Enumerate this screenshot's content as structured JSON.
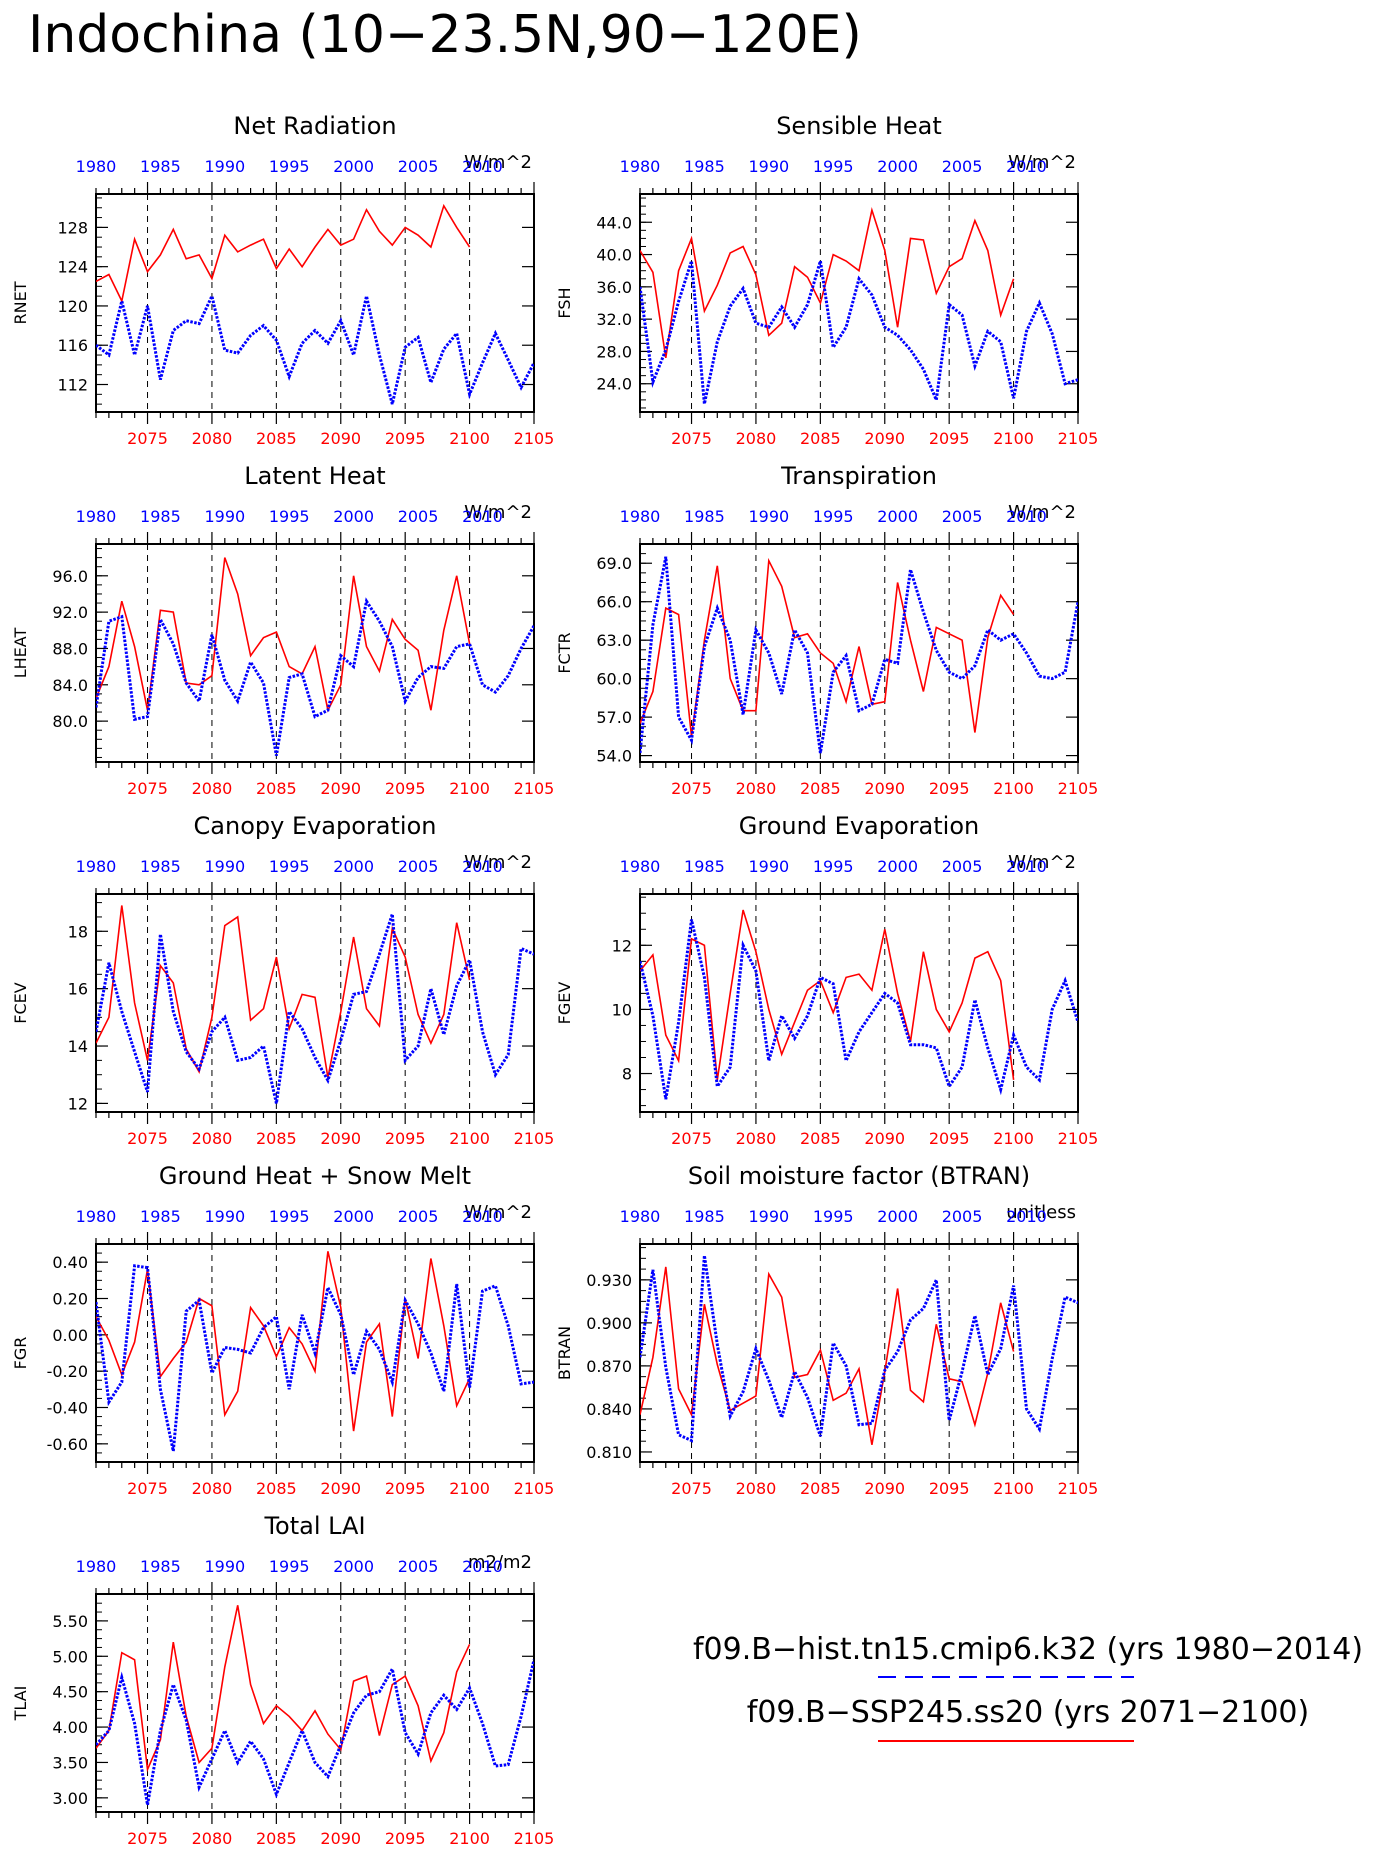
{
  "page_title": "Indochina (10−23.5N,90−120E)",
  "colors": {
    "hist": "#0000ff",
    "future": "#ff0000",
    "axis": "#000000"
  },
  "hist_years": [
    "1980",
    "1985",
    "1990",
    "1995",
    "2000",
    "2005",
    "2010"
  ],
  "future_years": [
    "2075",
    "2080",
    "2085",
    "2090",
    "2095",
    "2100",
    "2105"
  ],
  "legend": {
    "hist_label": "f09.B−hist.tn15.cmip6.k32 (yrs 1980−2014)",
    "future_label": "f09.B−SSP245.ss20 (yrs 2071−2100)"
  },
  "chart_data": [
    {
      "id": "rnet",
      "type": "line",
      "title": "Net Radiation",
      "ylabel": "RNET",
      "units": "W/m^2",
      "yticks": [
        "112",
        "116",
        "120",
        "124",
        "128"
      ],
      "ylim": [
        109.2,
        131.4
      ],
      "xlim": [
        2071,
        2105
      ],
      "series": [
        {
          "values": [
            116,
            115,
            120.5,
            115,
            120,
            112.5,
            117.5,
            118.5,
            118.2,
            121,
            115.5,
            115.2,
            117,
            118,
            116.5,
            112.8,
            116.2,
            117.5,
            116.2,
            118.5,
            115,
            121,
            115,
            110,
            115.8,
            116.8,
            112.2,
            115.6,
            117.2,
            111,
            114.2,
            117.2,
            114.5,
            111.7,
            114.2
          ]
        },
        {
          "values": [
            122.5,
            123.2,
            120.5,
            126.8,
            123.5,
            125.2,
            127.8,
            124.8,
            125.2,
            122.8,
            127.2,
            125.5,
            126.2,
            126.8,
            123.8,
            125.8,
            124,
            126,
            127.8,
            126.2,
            126.8,
            129.8,
            127.6,
            126.2,
            128,
            127.2,
            126,
            130.2,
            128,
            126
          ]
        }
      ]
    },
    {
      "id": "fsh",
      "type": "line",
      "title": "Sensible Heat",
      "ylabel": "FSH",
      "units": "W/m^2",
      "yticks": [
        "24.0",
        "28.0",
        "32.0",
        "36.0",
        "40.0",
        "44.0"
      ],
      "ylim": [
        20.5,
        47.5
      ],
      "xlim": [
        2071,
        2105
      ],
      "series": [
        {
          "values": [
            36,
            24.2,
            28.2,
            34.2,
            39.2,
            21.5,
            29.2,
            33.6,
            35.8,
            31.5,
            31,
            33.5,
            31,
            33.8,
            39.2,
            28.5,
            31,
            37,
            35,
            31,
            30,
            28.2,
            25.8,
            22,
            33.8,
            32.5,
            26.2,
            30.5,
            29.2,
            22.2,
            30.5,
            34,
            30.2,
            24,
            24.5
          ]
        },
        {
          "values": [
            40.5,
            37.8,
            27.2,
            38,
            42,
            33,
            36.2,
            40.2,
            41,
            37.5,
            30,
            31.5,
            38.5,
            37.2,
            34,
            40,
            39.2,
            38,
            45.5,
            40.5,
            31,
            42,
            41.8,
            35.2,
            38.5,
            39.5,
            44.2,
            40.5,
            32.5,
            37
          ]
        }
      ]
    },
    {
      "id": "lheat",
      "type": "line",
      "title": "Latent Heat",
      "ylabel": "LHEAT",
      "units": "W/m^2",
      "yticks": [
        "80.0",
        "84.0",
        "88.0",
        "92.0",
        "96.0"
      ],
      "ylim": [
        75.5,
        99.5
      ],
      "xlim": [
        2071,
        2105
      ],
      "series": [
        {
          "values": [
            81.5,
            91,
            91.5,
            80.2,
            80.5,
            91.2,
            88.5,
            84.2,
            82.2,
            89.5,
            84.5,
            82.2,
            86.5,
            84.2,
            76.2,
            84.8,
            85.2,
            80.5,
            81.2,
            87.2,
            86,
            93.2,
            91,
            88.2,
            82.2,
            84.8,
            86,
            85.8,
            88.2,
            88.5,
            84,
            83.2,
            85,
            88,
            90.5
          ]
        },
        {
          "values": [
            82.5,
            86,
            93.2,
            88.2,
            81.2,
            92.2,
            92,
            84.2,
            84,
            85,
            98,
            94,
            87.2,
            89.2,
            89.8,
            86,
            85.2,
            88.2,
            81.2,
            84,
            96,
            88.2,
            85.5,
            91.2,
            89,
            87.8,
            81.2,
            90,
            96,
            88.5
          ]
        }
      ]
    },
    {
      "id": "fctr",
      "type": "line",
      "title": "Transpiration",
      "ylabel": "FCTR",
      "units": "W/m^2",
      "yticks": [
        "54.0",
        "57.0",
        "60.0",
        "63.0",
        "66.0",
        "69.0"
      ],
      "ylim": [
        53.5,
        70.5
      ],
      "xlim": [
        2071,
        2105
      ],
      "series": [
        {
          "values": [
            54.2,
            64.2,
            69.5,
            57,
            55.2,
            62.5,
            65.5,
            63,
            57.2,
            63.8,
            62,
            58.8,
            63.8,
            62,
            54.2,
            60.5,
            61.8,
            57.5,
            58,
            61.5,
            61.2,
            68.5,
            65.2,
            62.2,
            60.5,
            60,
            61,
            63.8,
            63,
            63.5,
            62,
            60.2,
            60,
            60.5,
            66
          ]
        },
        {
          "values": [
            56.5,
            59,
            65.5,
            65,
            55.5,
            63,
            68.8,
            60,
            57.5,
            57.5,
            69.2,
            67.2,
            63.2,
            63.5,
            62,
            61.2,
            58.2,
            62.5,
            58,
            58.2,
            67.5,
            63,
            59,
            64,
            63.5,
            63,
            55.8,
            63.2,
            66.5,
            65
          ]
        }
      ]
    },
    {
      "id": "fcev",
      "type": "line",
      "title": "Canopy Evaporation",
      "ylabel": "FCEV",
      "units": "W/m^2",
      "yticks": [
        "12",
        "14",
        "16",
        "18"
      ],
      "ylim": [
        11.7,
        19.3
      ],
      "xlim": [
        2071,
        2105
      ],
      "series": [
        {
          "values": [
            14.5,
            16.9,
            15.2,
            13.8,
            12.4,
            17.9,
            15.2,
            13.8,
            13.2,
            14.5,
            15,
            13.5,
            13.6,
            14,
            12,
            15.2,
            14.6,
            13.6,
            12.8,
            14.2,
            15.8,
            15.9,
            17.2,
            18.6,
            13.5,
            14,
            16,
            14.4,
            16.1,
            17,
            14.5,
            13,
            13.7,
            17.4,
            17.2
          ]
        },
        {
          "values": [
            14.1,
            15,
            18.9,
            15.5,
            13.5,
            16.8,
            16.2,
            13.9,
            13.1,
            15,
            18.2,
            18.5,
            14.9,
            15.3,
            17.1,
            14.6,
            15.8,
            15.7,
            12.9,
            15.2,
            17.8,
            15.3,
            14.7,
            18.1,
            17.1,
            15.1,
            14.1,
            15.1,
            18.3,
            16.3
          ]
        }
      ]
    },
    {
      "id": "fgev",
      "type": "line",
      "title": "Ground Evaporation",
      "ylabel": "FGEV",
      "units": "W/m^2",
      "yticks": [
        "8",
        "10",
        "12"
      ],
      "ylim": [
        6.8,
        13.6
      ],
      "xlim": [
        2071,
        2105
      ],
      "series": [
        {
          "values": [
            11.5,
            9.8,
            7.2,
            9.6,
            12.8,
            11,
            7.6,
            8.2,
            12,
            11.2,
            8.4,
            9.8,
            9.1,
            9.8,
            11,
            10.8,
            8.4,
            9.3,
            9.9,
            10.5,
            10.2,
            8.9,
            8.9,
            8.8,
            7.6,
            8.2,
            10.3,
            8.8,
            7.5,
            9.2,
            8.2,
            7.8,
            10,
            10.9,
            9.6
          ]
        },
        {
          "values": [
            11.2,
            11.7,
            9.2,
            8.4,
            12.2,
            12,
            7.8,
            10.5,
            13.1,
            11.8,
            10,
            8.6,
            9.6,
            10.6,
            10.9,
            9.9,
            11,
            11.1,
            10.6,
            12.5,
            10.5,
            9,
            11.8,
            10,
            9.3,
            10.2,
            11.6,
            11.8,
            10.9,
            7.8
          ]
        }
      ]
    },
    {
      "id": "fgr",
      "type": "line",
      "title": "Ground Heat + Snow Melt",
      "ylabel": "FGR",
      "units": "W/m^2",
      "yticks": [
        "-0.60",
        "-0.40",
        "-0.20",
        "0.00",
        "0.20",
        "0.40"
      ],
      "ylim": [
        -0.7,
        0.5
      ],
      "xlim": [
        2071,
        2105
      ],
      "series": [
        {
          "values": [
            0.18,
            -0.37,
            -0.26,
            0.38,
            0.37,
            -0.3,
            -0.64,
            0.13,
            0.19,
            -0.21,
            -0.07,
            -0.08,
            -0.1,
            0.04,
            0.1,
            -0.3,
            0.11,
            -0.1,
            0.26,
            0.11,
            -0.22,
            0.02,
            -0.08,
            -0.26,
            0.19,
            0.06,
            -0.1,
            -0.31,
            0.28,
            -0.29,
            0.24,
            0.27,
            0.05,
            -0.27,
            -0.26
          ]
        },
        {
          "values": [
            0.1,
            -0.03,
            -0.22,
            -0.04,
            0.36,
            -0.23,
            -0.13,
            -0.04,
            0.2,
            0.16,
            -0.44,
            -0.31,
            0.15,
            0.05,
            -0.12,
            0.04,
            -0.05,
            -0.2,
            0.46,
            0.15,
            -0.53,
            -0.04,
            0.06,
            -0.45,
            0.2,
            -0.13,
            0.42,
            0.05,
            -0.39,
            -0.24
          ]
        }
      ]
    },
    {
      "id": "btran",
      "type": "line",
      "title": "Soil moisture factor (BTRAN)",
      "ylabel": "BTRAN",
      "units": "unitless",
      "yticks": [
        "0.810",
        "0.840",
        "0.870",
        "0.900",
        "0.930"
      ],
      "ylim": [
        0.803,
        0.955
      ],
      "xlim": [
        2071,
        2105
      ],
      "series": [
        {
          "values": [
            0.876,
            0.937,
            0.869,
            0.822,
            0.818,
            0.947,
            0.885,
            0.835,
            0.852,
            0.882,
            0.86,
            0.834,
            0.866,
            0.848,
            0.821,
            0.886,
            0.87,
            0.829,
            0.83,
            0.867,
            0.88,
            0.902,
            0.91,
            0.93,
            0.832,
            0.866,
            0.905,
            0.864,
            0.882,
            0.926,
            0.84,
            0.826,
            0.875,
            0.918,
            0.914
          ]
        },
        {
          "values": [
            0.836,
            0.876,
            0.939,
            0.854,
            0.836,
            0.913,
            0.871,
            0.839,
            0.844,
            0.849,
            0.934,
            0.918,
            0.862,
            0.864,
            0.881,
            0.846,
            0.851,
            0.868,
            0.815,
            0.866,
            0.924,
            0.853,
            0.845,
            0.899,
            0.861,
            0.859,
            0.829,
            0.865,
            0.914,
            0.88
          ]
        }
      ]
    },
    {
      "id": "tlai",
      "type": "line",
      "title": "Total LAI",
      "ylabel": "TLAI",
      "units": "m2/m2",
      "yticks": [
        "3.00",
        "3.50",
        "4.00",
        "4.50",
        "5.00",
        "5.50"
      ],
      "ylim": [
        2.8,
        5.88
      ],
      "xlim": [
        2071,
        2105
      ],
      "series": [
        {
          "values": [
            3.75,
            3.95,
            4.7,
            4.05,
            2.9,
            3.95,
            4.6,
            4.1,
            3.15,
            3.55,
            3.95,
            3.5,
            3.8,
            3.55,
            3.05,
            3.5,
            3.95,
            3.5,
            3.3,
            3.75,
            4.2,
            4.45,
            4.5,
            4.82,
            3.92,
            3.62,
            4.2,
            4.45,
            4.25,
            4.55,
            4.05,
            3.45,
            3.47,
            4.15,
            4.95
          ]
        },
        {
          "values": [
            3.7,
            3.95,
            5.05,
            4.95,
            3.4,
            3.82,
            5.2,
            4.15,
            3.5,
            3.7,
            4.85,
            5.72,
            4.6,
            4.05,
            4.3,
            4.15,
            3.95,
            4.23,
            3.9,
            3.68,
            4.65,
            4.72,
            3.88,
            4.6,
            4.72,
            4.3,
            3.52,
            3.92,
            4.78,
            5.17
          ]
        }
      ]
    }
  ]
}
